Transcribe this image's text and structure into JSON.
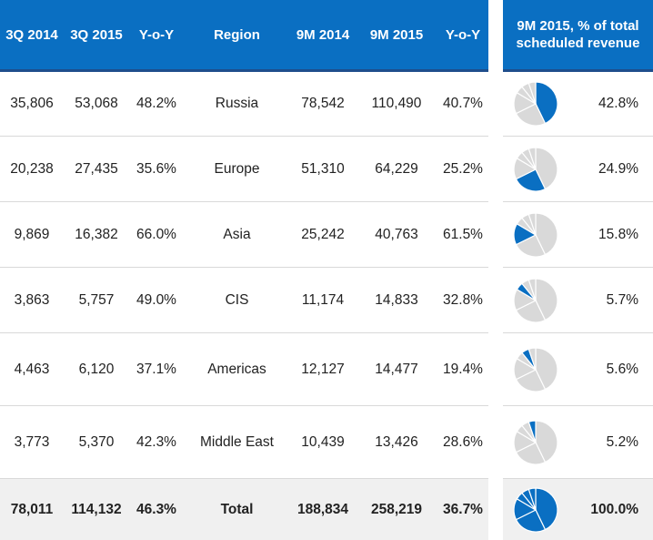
{
  "header": {
    "columns": [
      "3Q 2014",
      "3Q 2015",
      "Y-o-Y",
      "Region",
      "9M 2014",
      "9M 2015",
      "Y-o-Y"
    ],
    "share_title_line1": "9M 2015, % of total",
    "share_title_line2": "scheduled revenue"
  },
  "colors": {
    "header_bg": "#0a6fc2",
    "header_rule": "#1f4e8c",
    "pie_highlight": "#0a6fc2",
    "pie_other": "#d9d9d9",
    "total_row_bg": "#f0f0f0"
  },
  "chart_data": {
    "type": "table",
    "columns": [
      "3Q 2014",
      "3Q 2015",
      "Y-o-Y",
      "Region",
      "9M 2014",
      "9M 2015",
      "Y-o-Y",
      "9M 2015, % of total scheduled revenue"
    ],
    "rows": [
      {
        "q3_2014": "35,806",
        "q3_2015": "53,068",
        "yoy_q": "48.2%",
        "region": "Russia",
        "m9_2014": "78,542",
        "m9_2015": "110,490",
        "yoy_9m": "40.7%",
        "share": "42.8%",
        "share_value": 42.8
      },
      {
        "q3_2014": "20,238",
        "q3_2015": "27,435",
        "yoy_q": "35.6%",
        "region": "Europe",
        "m9_2014": "51,310",
        "m9_2015": "64,229",
        "yoy_9m": "25.2%",
        "share": "24.9%",
        "share_value": 24.9
      },
      {
        "q3_2014": "9,869",
        "q3_2015": "16,382",
        "yoy_q": "66.0%",
        "region": "Asia",
        "m9_2014": "25,242",
        "m9_2015": "40,763",
        "yoy_9m": "61.5%",
        "share": "15.8%",
        "share_value": 15.8
      },
      {
        "q3_2014": "3,863",
        "q3_2015": "5,757",
        "yoy_q": "49.0%",
        "region": "CIS",
        "m9_2014": "11,174",
        "m9_2015": "14,833",
        "yoy_9m": "32.8%",
        "share": "5.7%",
        "share_value": 5.7
      },
      {
        "q3_2014": "4,463",
        "q3_2015": "6,120",
        "yoy_q": "37.1%",
        "region": "Americas",
        "m9_2014": "12,127",
        "m9_2015": "14,477",
        "yoy_9m": "19.4%",
        "share": "5.6%",
        "share_value": 5.6
      },
      {
        "q3_2014": "3,773",
        "q3_2015": "5,370",
        "yoy_q": "42.3%",
        "region": "Middle East",
        "m9_2014": "10,439",
        "m9_2015": "13,426",
        "yoy_9m": "28.6%",
        "share": "5.2%",
        "share_value": 5.2
      },
      {
        "q3_2014": "78,011",
        "q3_2015": "114,132",
        "yoy_q": "46.3%",
        "region": "Total",
        "m9_2014": "188,834",
        "m9_2015": "258,219",
        "yoy_9m": "36.7%",
        "share": "100.0%",
        "share_value": 100.0
      }
    ]
  }
}
